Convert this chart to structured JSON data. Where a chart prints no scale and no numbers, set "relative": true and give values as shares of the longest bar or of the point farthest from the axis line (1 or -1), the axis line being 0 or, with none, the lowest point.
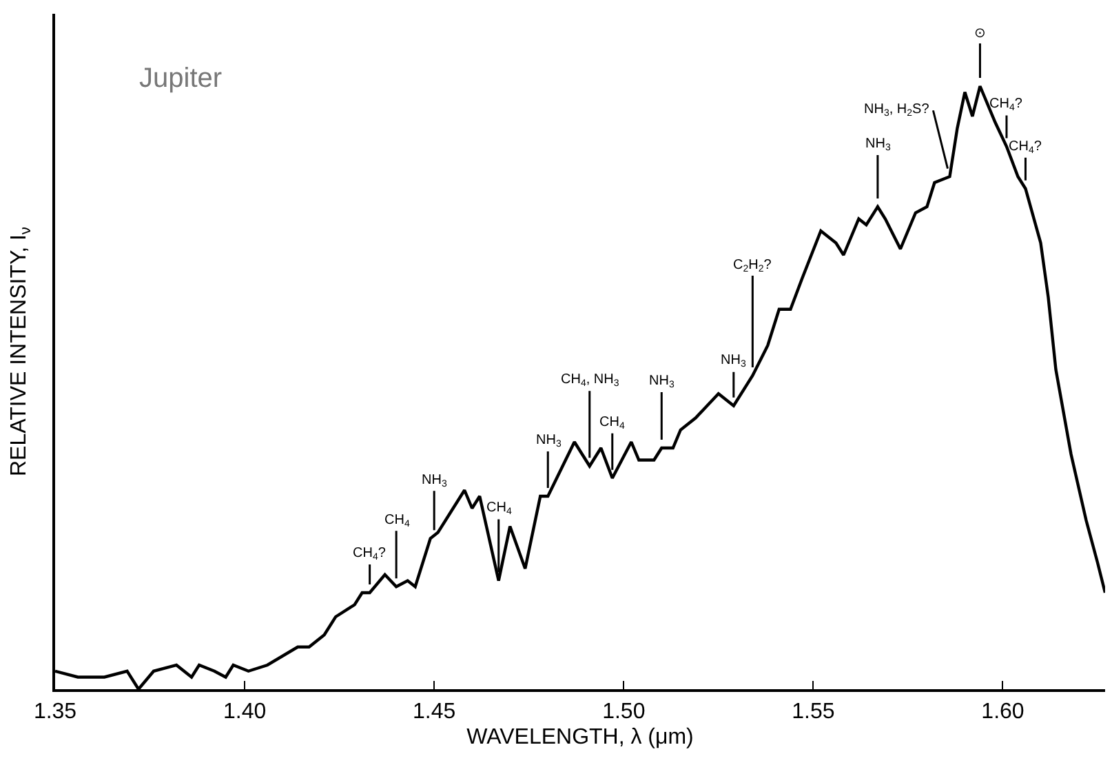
{
  "chart_data": {
    "type": "line",
    "relative": true,
    "tick_labels": "x",
    "marker": "none",
    "line_style": "solid",
    "xlabel": "WAVELENGTH, λ (μm)",
    "ylabel": "RELATIVE INTENSITY, I$_{ν}$",
    "xlim": [
      1.35,
      1.627
    ],
    "xticks": [
      {
        "value": 1.35,
        "label": "1.35"
      },
      {
        "value": 1.4,
        "label": "1.40"
      },
      {
        "value": 1.45,
        "label": "1.45"
      },
      {
        "value": 1.5,
        "label": "1.50"
      },
      {
        "value": 1.55,
        "label": "1.55"
      },
      {
        "value": 1.6,
        "label": "1.60"
      }
    ],
    "x": [
      1.35,
      1.356,
      1.363,
      1.369,
      1.372,
      1.376,
      1.382,
      1.386,
      1.388,
      1.392,
      1.395,
      1.397,
      1.401,
      1.406,
      1.414,
      1.417,
      1.421,
      1.424,
      1.429,
      1.431,
      1.433,
      1.437,
      1.44,
      1.443,
      1.445,
      1.449,
      1.451,
      1.454,
      1.458,
      1.46,
      1.462,
      1.467,
      1.47,
      1.474,
      1.478,
      1.48,
      1.487,
      1.491,
      1.494,
      1.497,
      1.502,
      1.504,
      1.508,
      1.51,
      1.513,
      1.515,
      1.519,
      1.522,
      1.525,
      1.529,
      1.534,
      1.538,
      1.541,
      1.544,
      1.547,
      1.552,
      1.556,
      1.558,
      1.562,
      1.564,
      1.567,
      1.569,
      1.573,
      1.575,
      1.577,
      1.58,
      1.582,
      1.586,
      1.588,
      1.59,
      1.592,
      1.594,
      1.598,
      1.601,
      1.604,
      1.606,
      1.61,
      1.612,
      1.614,
      1.618,
      1.622,
      1.625,
      1.627
    ],
    "series": [
      {
        "color": "#000000",
        "values": [
          0.03,
          0.02,
          0.02,
          0.03,
          0.0,
          0.03,
          0.04,
          0.02,
          0.04,
          0.03,
          0.02,
          0.04,
          0.03,
          0.04,
          0.07,
          0.07,
          0.09,
          0.12,
          0.14,
          0.16,
          0.16,
          0.19,
          0.17,
          0.18,
          0.17,
          0.25,
          0.26,
          0.29,
          0.33,
          0.3,
          0.32,
          0.18,
          0.27,
          0.2,
          0.32,
          0.32,
          0.41,
          0.37,
          0.4,
          0.35,
          0.41,
          0.38,
          0.38,
          0.4,
          0.4,
          0.43,
          0.45,
          0.47,
          0.49,
          0.47,
          0.52,
          0.57,
          0.63,
          0.63,
          0.68,
          0.76,
          0.74,
          0.72,
          0.78,
          0.77,
          0.8,
          0.78,
          0.73,
          0.76,
          0.79,
          0.8,
          0.84,
          0.85,
          0.93,
          0.99,
          0.95,
          1.0,
          0.94,
          0.9,
          0.85,
          0.83,
          0.74,
          0.65,
          0.53,
          0.39,
          0.28,
          0.21,
          0.16
        ]
      }
    ],
    "annotations": [
      "Jupiter",
      {
        "text": "CH$_{4}$?",
        "x": 1.433,
        "y": 0.16
      },
      {
        "text": "CH$_{4}$",
        "x": 1.44,
        "y": 0.17
      },
      {
        "text": "NH$_{3}$",
        "x": 1.45,
        "y": 0.25
      },
      {
        "text": "CH$_{4}$",
        "x": 1.467,
        "y": 0.18
      },
      {
        "text": "NH$_{3}$",
        "x": 1.48,
        "y": 0.32
      },
      {
        "text": "CH$_{4}$, NH$_{3}$",
        "x": 1.491,
        "y": 0.37
      },
      {
        "text": "CH$_{4}$",
        "x": 1.497,
        "y": 0.35
      },
      {
        "text": "NH$_{3}$",
        "x": 1.51,
        "y": 0.4
      },
      {
        "text": "C$_{2}$H$_{2}$?",
        "x": 1.534,
        "y": 0.52
      },
      {
        "text": "NH$_{3}$",
        "x": 1.529,
        "y": 0.47
      },
      {
        "text": "NH$_{3}$",
        "x": 1.567,
        "y": 0.8
      },
      {
        "text": "NH$_{3}$, H$_{2}$S?",
        "x": 1.586,
        "y": 0.85
      },
      {
        "text": "⊙",
        "x": 1.594,
        "y": 1.0
      },
      {
        "text": "CH$_{4}$?",
        "x": 1.601,
        "y": 0.9
      },
      {
        "text": "CH$_{4}$?",
        "x": 1.606,
        "y": 0.83
      }
    ]
  }
}
